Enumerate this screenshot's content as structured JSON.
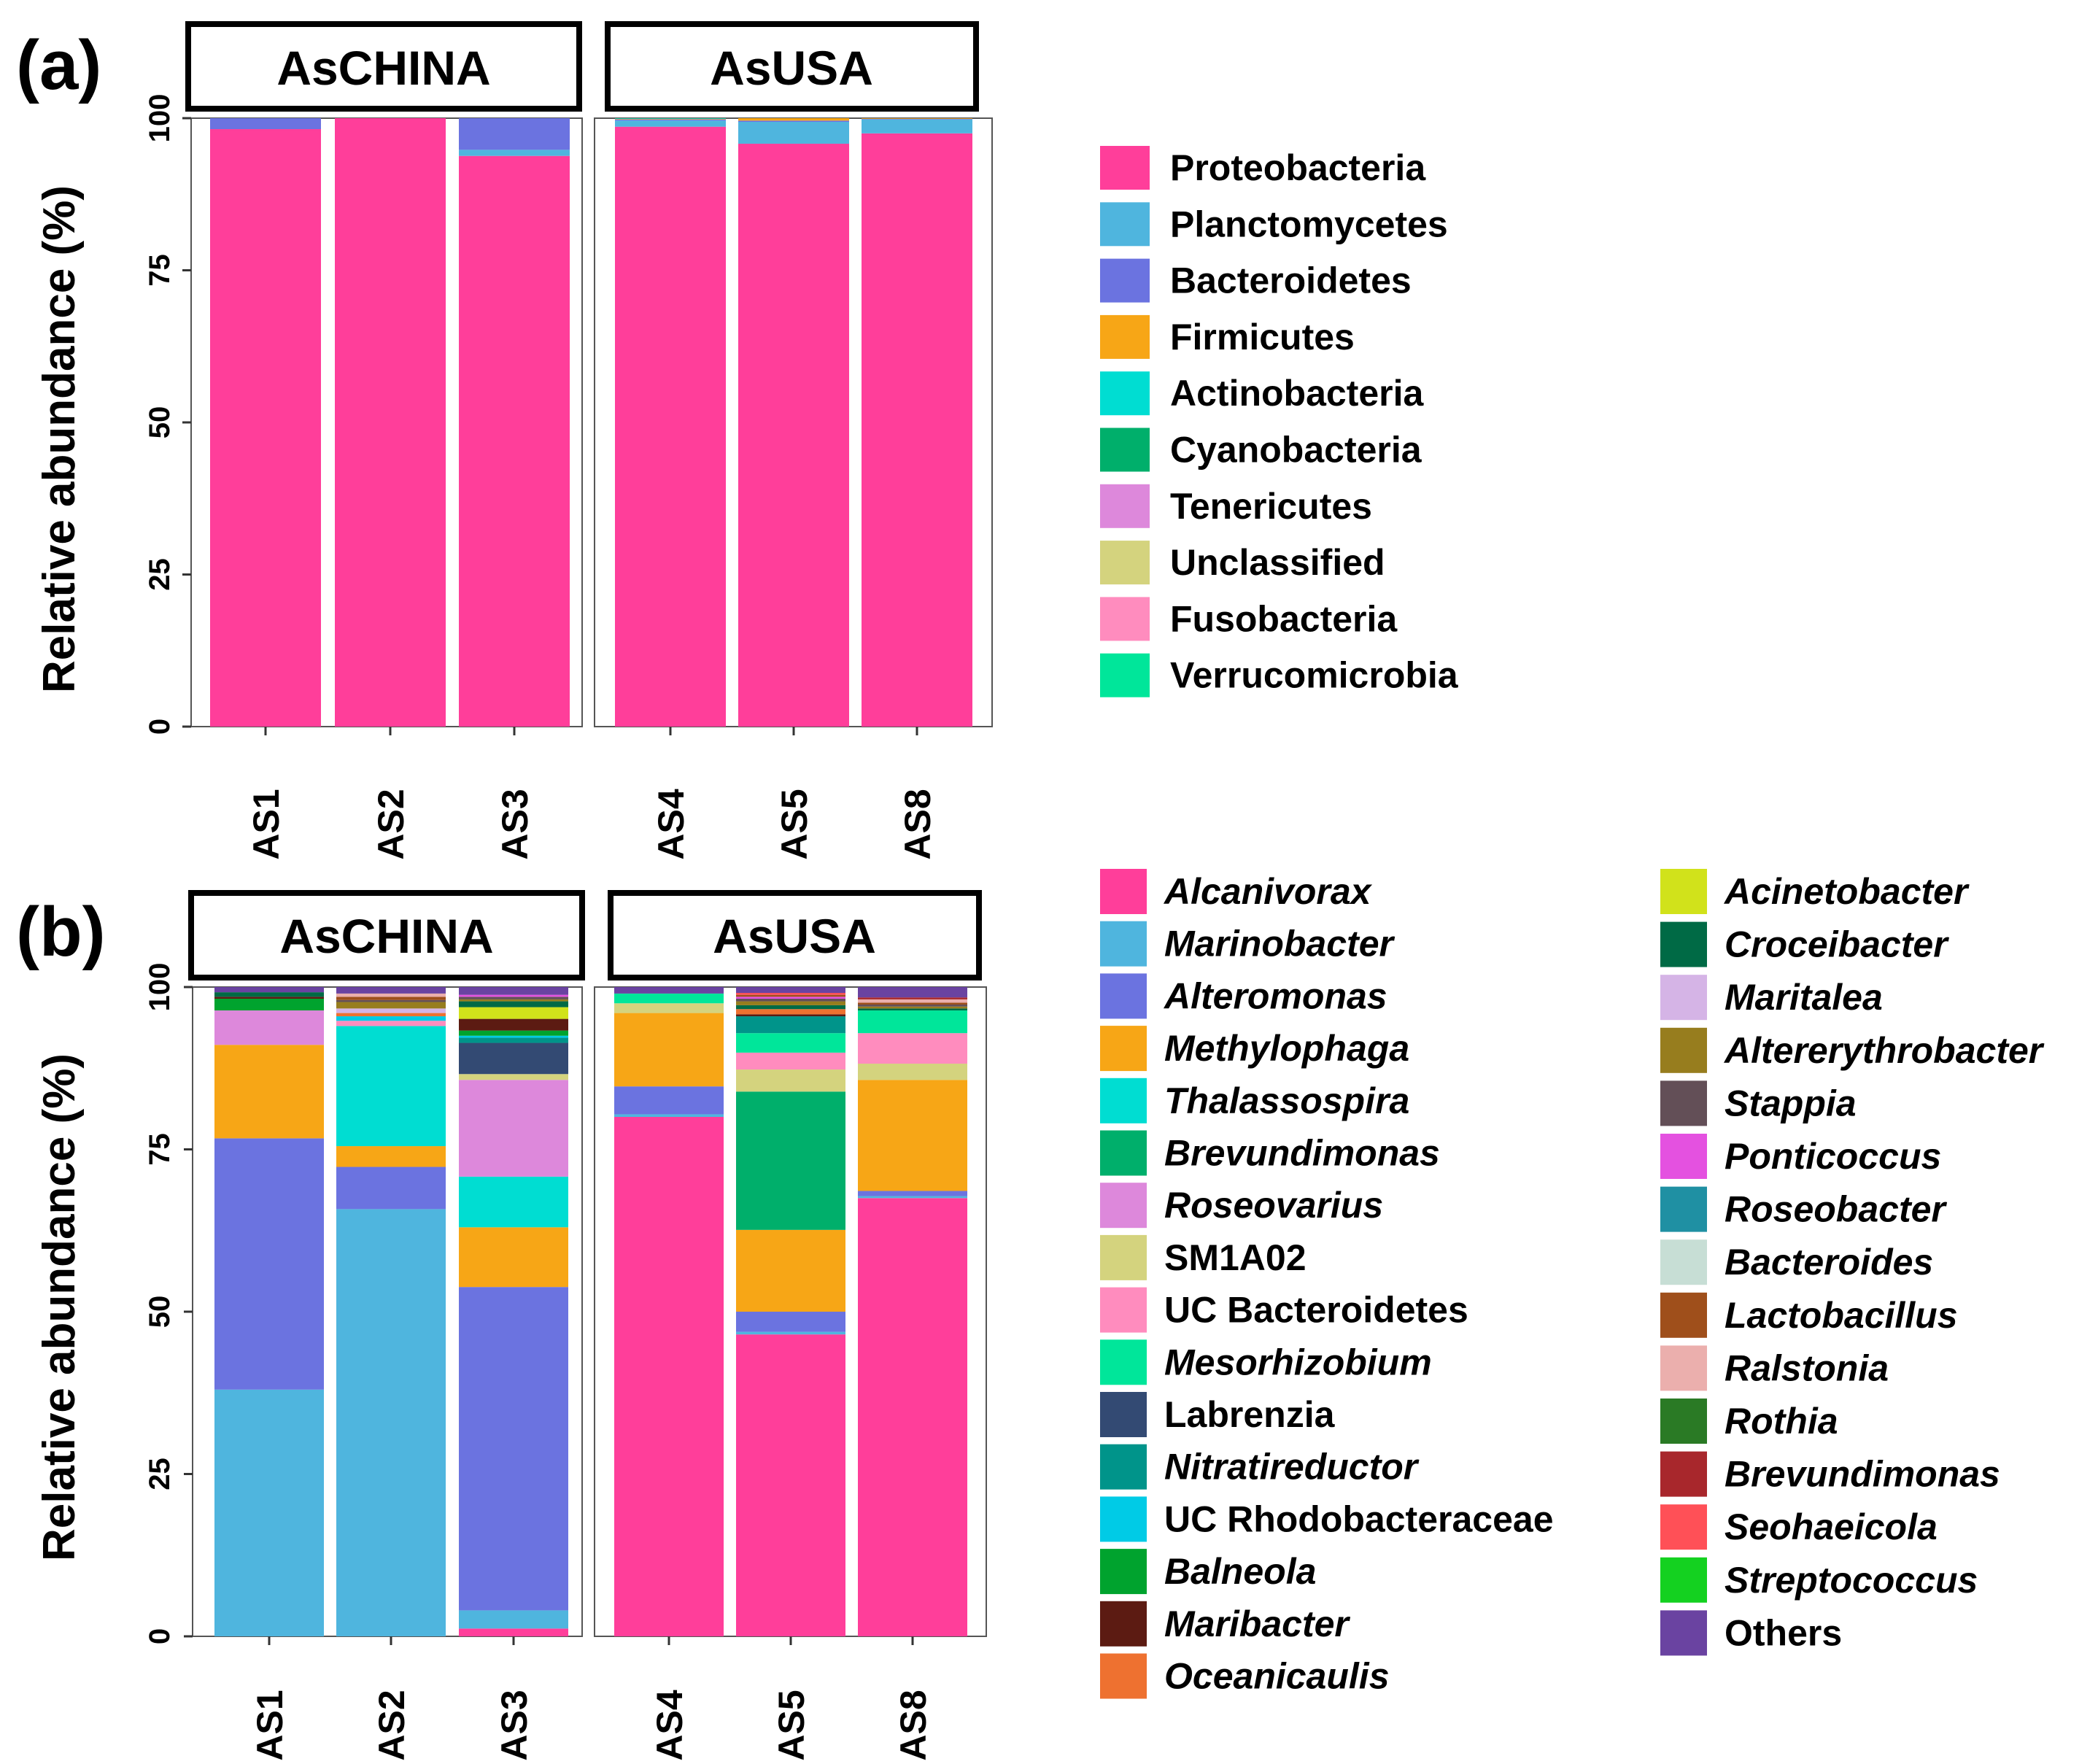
{
  "chart_data": [
    {
      "panel": "(a)",
      "type": "bar",
      "stacked": true,
      "ylabel": "Relative abundance (%)",
      "ylim": [
        0,
        100
      ],
      "yticks": [
        0,
        25,
        50,
        75,
        100
      ],
      "facets": [
        {
          "label": "AsCHINA",
          "categories": [
            "AS1",
            "AS2",
            "AS3"
          ]
        },
        {
          "label": "AsUSA",
          "categories": [
            "AS4",
            "AS5",
            "AS8"
          ]
        }
      ],
      "series": [
        {
          "name": "Proteobacteria",
          "color": "#FF3E9A",
          "values": [
            98.2,
            100,
            93.8,
            98.6,
            95.8,
            97.5
          ]
        },
        {
          "name": "Planctomycetes",
          "color": "#4FB5DE",
          "values": [
            0,
            0,
            1.0,
            1.0,
            3.6,
            2.3
          ]
        },
        {
          "name": "Bacteroidetes",
          "color": "#6B73E0",
          "values": [
            1.8,
            0,
            5.2,
            0.2,
            0.2,
            0.1
          ]
        },
        {
          "name": "Firmicutes",
          "color": "#F7A616",
          "values": [
            0,
            0,
            0,
            0.1,
            0.4,
            0.1
          ]
        },
        {
          "name": "Actinobacteria",
          "color": "#00DDD2",
          "values": [
            0,
            0,
            0,
            0.1,
            0,
            0
          ]
        },
        {
          "name": "Cyanobacteria",
          "color": "#00AF6B",
          "values": [
            0,
            0,
            0,
            0,
            0,
            0
          ]
        },
        {
          "name": "Tenericutes",
          "color": "#DD88DB",
          "values": [
            0,
            0,
            0,
            0,
            0,
            0
          ]
        },
        {
          "name": "Unclassified",
          "color": "#D4D37E",
          "values": [
            0,
            0,
            0,
            0,
            0,
            0
          ]
        },
        {
          "name": "Fusobacteria",
          "color": "#FF8CBE",
          "values": [
            0,
            0,
            0,
            0,
            0,
            0
          ]
        },
        {
          "name": "Verrucomicrobia",
          "color": "#00E69A",
          "values": [
            0,
            0,
            0,
            0,
            0,
            0
          ]
        }
      ]
    },
    {
      "panel": "(b)",
      "type": "bar",
      "stacked": true,
      "ylabel": "Relative abundance (%)",
      "ylim": [
        0,
        100
      ],
      "yticks": [
        0,
        25,
        50,
        75,
        100
      ],
      "facets": [
        {
          "label": "AsCHINA",
          "categories": [
            "AS1",
            "AS2",
            "AS3"
          ]
        },
        {
          "label": "AsUSA",
          "categories": [
            "AS4",
            "AS5",
            "AS8"
          ]
        }
      ],
      "series": [
        {
          "name": "Alcanivorax",
          "italic": true,
          "color": "#FF3E9A",
          "values": [
            0,
            0,
            1.2,
            80.0,
            46.5,
            67.5
          ]
        },
        {
          "name": "Marinobacter",
          "italic": true,
          "color": "#4FB5DE",
          "values": [
            38.0,
            65.8,
            2.8,
            0.4,
            0.4,
            0.3
          ]
        },
        {
          "name": "Alteromonas",
          "italic": true,
          "color": "#6B73E0",
          "values": [
            38.7,
            6.5,
            49.8,
            4.3,
            3.1,
            0.8
          ]
        },
        {
          "name": "Methylophaga",
          "italic": true,
          "color": "#F7A616",
          "values": [
            14.4,
            3.2,
            9.2,
            11.3,
            12.6,
            17.1
          ]
        },
        {
          "name": "Thalassospira",
          "italic": true,
          "color": "#00DDD2",
          "values": [
            0,
            18.5,
            7.8,
            0,
            0,
            0
          ]
        },
        {
          "name": "Brevundimonas",
          "italic": true,
          "color": "#00AF6B",
          "values": [
            0,
            0,
            0,
            0,
            21.3,
            0
          ]
        },
        {
          "name": "Roseovarius",
          "italic": true,
          "color": "#DD88DB",
          "values": [
            5.3,
            0,
            14.9,
            0,
            0,
            0
          ]
        },
        {
          "name": "SM1A02",
          "color": "#D4D37E",
          "values": [
            0,
            0,
            0.9,
            1.5,
            3.4,
            2.5
          ]
        },
        {
          "name": "UC Bacteroidetes",
          "color": "#FF8CBE",
          "values": [
            0,
            0.8,
            0,
            0,
            2.6,
            4.7
          ]
        },
        {
          "name": "Mesorhizobium",
          "italic": true,
          "color": "#00E69A",
          "values": [
            0,
            0,
            0,
            1.5,
            3.0,
            3.5
          ]
        },
        {
          "name": "Labrenzia",
          "color": "#334A73",
          "values": [
            0,
            0,
            4.8,
            0,
            0,
            0
          ]
        },
        {
          "name": "Nitratireductor",
          "italic": true,
          "color": "#00948A",
          "values": [
            0,
            0,
            0.8,
            0,
            2.6,
            0
          ]
        },
        {
          "name": "UC Rhodobacteraceae",
          "color": "#00CBE6",
          "values": [
            0,
            0.7,
            0.3,
            0,
            0,
            0
          ]
        },
        {
          "name": "Balneola",
          "italic": true,
          "color": "#00A32E",
          "values": [
            1.8,
            0,
            0.8,
            0,
            0,
            0
          ]
        },
        {
          "name": "Maribacter",
          "italic": true,
          "color": "#5C1B12",
          "values": [
            0.3,
            0,
            1.8,
            0,
            0.3,
            0
          ]
        },
        {
          "name": "Oceanicaulis",
          "italic": true,
          "color": "#EE7130",
          "values": [
            0,
            0.5,
            0,
            0,
            0.8,
            0
          ]
        },
        {
          "name": "Acinetobacter",
          "italic": true,
          "color": "#D1E21B",
          "values": [
            0,
            0,
            1.8,
            0,
            0,
            0
          ]
        },
        {
          "name": "Croceibacter",
          "italic": true,
          "color": "#006A45",
          "values": [
            0.7,
            0,
            0.9,
            0,
            0.6,
            0.3
          ]
        },
        {
          "name": "Maritalea",
          "italic": true,
          "color": "#D5B4E6",
          "values": [
            0,
            0.7,
            0,
            0,
            0,
            0
          ]
        },
        {
          "name": "Altererythrobacter",
          "italic": true,
          "color": "#977D1E",
          "values": [
            0,
            1.0,
            0.3,
            0,
            0.6,
            0.3
          ]
        },
        {
          "name": "Stappia",
          "italic": true,
          "color": "#634F57",
          "values": [
            0,
            0.3,
            0.4,
            0,
            0.4,
            0.3
          ]
        },
        {
          "name": "Ponticoccus",
          "italic": true,
          "color": "#E451E0",
          "values": [
            0,
            0,
            0.3,
            0,
            0.3,
            0
          ]
        },
        {
          "name": "Roseobacter",
          "italic": true,
          "color": "#1F90A3",
          "values": [
            0,
            0,
            0,
            0,
            0,
            0
          ]
        },
        {
          "name": "Bacteroides",
          "italic": true,
          "color": "#C7DED5",
          "values": [
            0,
            0,
            0,
            0,
            0,
            0
          ]
        },
        {
          "name": "Lactobacillus",
          "italic": true,
          "color": "#9F4F1B",
          "values": [
            0,
            0.5,
            0,
            0,
            0.3,
            0.3
          ]
        },
        {
          "name": "Ralstonia",
          "italic": true,
          "color": "#EBAFAD",
          "values": [
            0,
            0.5,
            0,
            0,
            0,
            0.5
          ]
        },
        {
          "name": "Rothia",
          "italic": true,
          "color": "#2A7A25",
          "values": [
            0,
            0,
            0,
            0,
            0,
            0
          ]
        },
        {
          "name": "Brevundimonas",
          "italic": true,
          "color": "#A8272C",
          "values": [
            0,
            0,
            0,
            0,
            0,
            0.3
          ]
        },
        {
          "name": "Seohaeicola",
          "italic": true,
          "color": "#FF5057",
          "values": [
            0,
            0,
            0,
            0,
            0.3,
            0
          ]
        },
        {
          "name": "Streptococcus",
          "italic": true,
          "color": "#14D120",
          "values": [
            0,
            0,
            0,
            0,
            0,
            0
          ]
        },
        {
          "name": "Others",
          "color": "#6A43A1",
          "values": [
            0.8,
            1.0,
            1.4,
            1.0,
            1.0,
            1.6
          ]
        }
      ]
    }
  ]
}
